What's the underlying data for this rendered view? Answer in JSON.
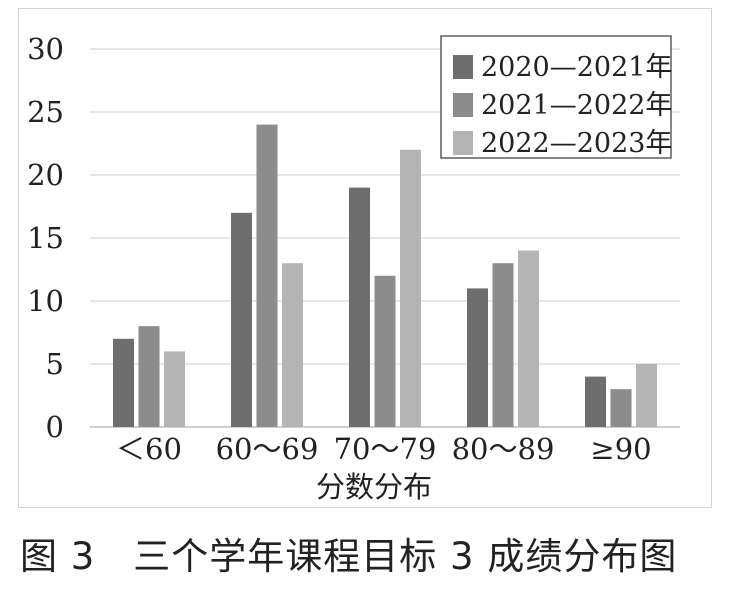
{
  "chart_data": {
    "type": "bar",
    "xlabel": "分数分布",
    "ylabel": "",
    "ylim": [
      0,
      30
    ],
    "yticks": [
      0,
      5,
      10,
      15,
      20,
      25,
      30
    ],
    "grid": true,
    "legend_position": "top-right",
    "categories": [
      "＜60",
      "60～69",
      "70～79",
      "80～89",
      "≥90"
    ],
    "series": [
      {
        "name": "2020—2021年",
        "color": "#6e6e6e",
        "values": [
          7,
          17,
          19,
          11,
          4
        ]
      },
      {
        "name": "2021—2022年",
        "color": "#8c8c8c",
        "values": [
          8,
          24,
          12,
          13,
          3
        ]
      },
      {
        "name": "2022—2023年",
        "color": "#b4b4b4",
        "values": [
          6,
          13,
          22,
          14,
          5
        ]
      }
    ]
  },
  "caption": "图 3　三个学年课程目标 3 成绩分布图"
}
